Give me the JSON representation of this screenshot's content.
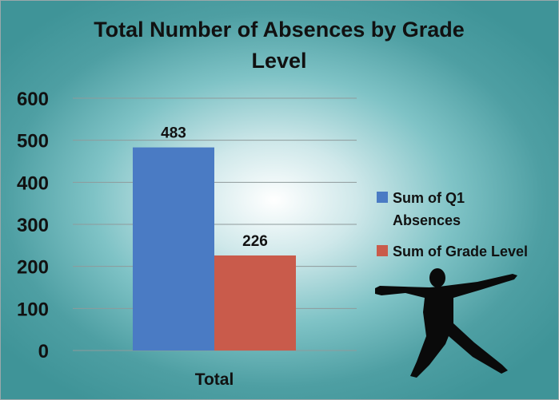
{
  "chart_data": {
    "type": "bar",
    "title_lines": [
      "Total Number of Absences by Grade",
      "Level"
    ],
    "categories": [
      "Total"
    ],
    "series": [
      {
        "name": "Sum of Q1 Absences",
        "name_lines": [
          "Sum of Q1",
          "Absences"
        ],
        "values": [
          483
        ],
        "color": "#4a7bc4"
      },
      {
        "name": "Sum of Grade Level",
        "name_lines": [
          "Sum of Grade Level"
        ],
        "values": [
          226
        ],
        "color": "#c95b4b"
      }
    ],
    "yticks": [
      "0",
      "100",
      "200",
      "300",
      "400",
      "500",
      "600"
    ],
    "ylim": [
      0,
      600
    ],
    "grid": true,
    "legend": "right",
    "decoration": "jumping-person-silhouette"
  }
}
